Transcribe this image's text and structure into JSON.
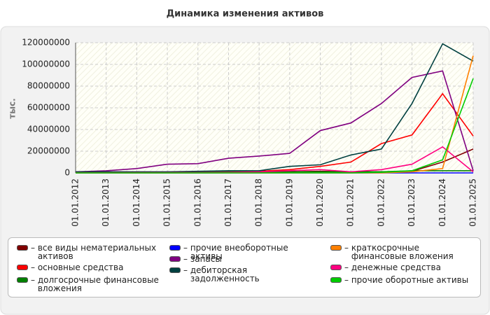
{
  "chart_data": {
    "type": "line",
    "title": "Динамика изменения активов",
    "y_label": "тыс.",
    "categories": [
      "01.01.2012",
      "01.01.2013",
      "01.01.2014",
      "01.01.2015",
      "01.01.2016",
      "01.01.2017",
      "01.01.2018",
      "01.01.2019",
      "01.01.2020",
      "01.01.2021",
      "01.01.2022",
      "01.01.2023",
      "01.01.2024",
      "01.01.2025"
    ],
    "ylim": [
      0,
      120000000
    ],
    "yticks": [
      0,
      20000000,
      40000000,
      60000000,
      80000000,
      100000000,
      120000000
    ],
    "grid": true,
    "series": [
      {
        "name": "все виды нематериальных активов",
        "color": "#800000",
        "values": [
          0,
          0,
          0,
          0,
          0,
          200000,
          500000,
          1000000,
          1500000,
          1000000,
          1000000,
          1500000,
          10000000,
          22000000
        ]
      },
      {
        "name": "основные средства",
        "color": "#ff0000",
        "values": [
          500000,
          500000,
          600000,
          700000,
          800000,
          1000000,
          1500000,
          3000000,
          6000000,
          10000000,
          27000000,
          35000000,
          73000000,
          34000000
        ]
      },
      {
        "name": "долгосрочные финансовые вложения",
        "color": "#008000",
        "values": [
          500000,
          500000,
          600000,
          700000,
          800000,
          1000000,
          1000000,
          1000000,
          1000000,
          1000000,
          1000000,
          2000000,
          2000000,
          2000000
        ]
      },
      {
        "name": "прочие внеоборотные активы",
        "color": "#0000ff",
        "values": [
          0,
          0,
          0,
          0,
          0,
          0,
          0,
          0,
          0,
          0,
          0,
          0,
          0,
          0
        ]
      },
      {
        "name": "запасы",
        "color": "#800080",
        "values": [
          1000000,
          2000000,
          4000000,
          8000000,
          8500000,
          13500000,
          15500000,
          18000000,
          39000000,
          46000000,
          64000000,
          88000000,
          94000000,
          2000000
        ]
      },
      {
        "name": "дебиторская задолженность",
        "color": "#004040",
        "values": [
          1000000,
          1000000,
          1000000,
          1000000,
          1500000,
          2000000,
          2000000,
          6000000,
          7500000,
          16500000,
          22000000,
          64000000,
          119000000,
          103000000
        ]
      },
      {
        "name": "краткосрочные финансовые вложения",
        "color": "#ff8000",
        "values": [
          0,
          0,
          0,
          0,
          0,
          0,
          0,
          0,
          0,
          0,
          0,
          1000000,
          4000000,
          108000000
        ]
      },
      {
        "name": "денежные средства",
        "color": "#ff0080",
        "values": [
          200000,
          200000,
          300000,
          300000,
          400000,
          500000,
          1000000,
          2000000,
          3000000,
          1000000,
          3000000,
          8000000,
          24000000,
          1000000
        ]
      },
      {
        "name": "прочие оборотные активы",
        "color": "#00cc00",
        "values": [
          0,
          0,
          0,
          0,
          0,
          0,
          0,
          0,
          0,
          0,
          500000,
          2000000,
          12000000,
          87000000
        ]
      }
    ]
  }
}
